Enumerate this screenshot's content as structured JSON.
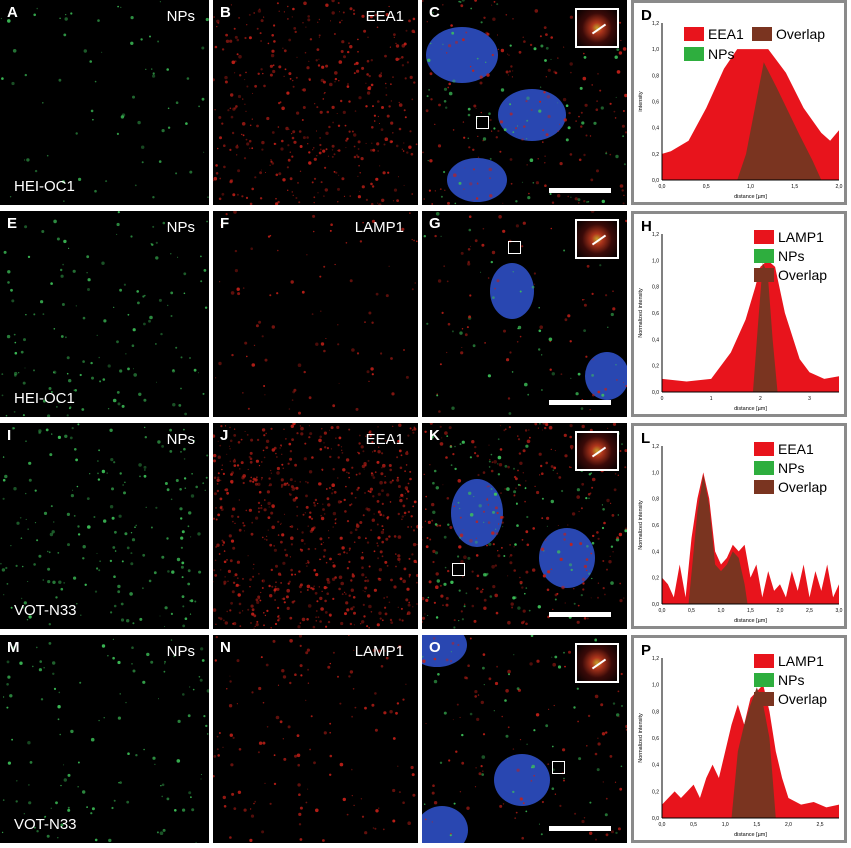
{
  "rows": [
    {
      "cell_line": "HEI-OC1",
      "panels": [
        {
          "letter": "A",
          "label": "NPs"
        },
        {
          "letter": "B",
          "label": "EEA1"
        },
        {
          "letter": "C",
          "label": ""
        }
      ],
      "plot": {
        "letter": "D",
        "ylabel": "intensity",
        "xlabel": "distance [µm]",
        "legend": [
          "EEA1",
          "Overlap",
          "NPs"
        ],
        "yticks": [
          "0,0",
          "0,2",
          "0,4",
          "0,6",
          "0,8",
          "1,0",
          "1,2"
        ],
        "xticks": [
          "0,0",
          "0,5",
          "1,0",
          "1,5",
          "2,0"
        ]
      }
    },
    {
      "cell_line": "HEI-OC1",
      "panels": [
        {
          "letter": "E",
          "label": "NPs"
        },
        {
          "letter": "F",
          "label": "LAMP1"
        },
        {
          "letter": "G",
          "label": ""
        }
      ],
      "plot": {
        "letter": "H",
        "ylabel": "Normalized intensity",
        "xlabel": "distance [µm]",
        "legend": [
          "LAMP1",
          "NPs",
          "Overlap"
        ],
        "yticks": [
          "0,0",
          "0,2",
          "0,4",
          "0,6",
          "0,8",
          "1,0",
          "1,2"
        ],
        "xticks": [
          "0",
          "1",
          "2",
          "3"
        ]
      }
    },
    {
      "cell_line": "VOT-N33",
      "panels": [
        {
          "letter": "I",
          "label": "NPs"
        },
        {
          "letter": "J",
          "label": "EEA1"
        },
        {
          "letter": "K",
          "label": ""
        }
      ],
      "plot": {
        "letter": "L",
        "ylabel": "Normalized intensity",
        "xlabel": "distance [µm]",
        "legend": [
          "EEA1",
          "NPs",
          "Overlap"
        ],
        "yticks": [
          "0,0",
          "0,2",
          "0,4",
          "0,6",
          "0,8",
          "1,0",
          "1,2"
        ],
        "xticks": [
          "0,0",
          "0,5",
          "1,0",
          "1,5",
          "2,0",
          "2,5",
          "3,0"
        ]
      }
    },
    {
      "cell_line": "VOT-N33",
      "panels": [
        {
          "letter": "M",
          "label": "NPs"
        },
        {
          "letter": "N",
          "label": "LAMP1"
        },
        {
          "letter": "O",
          "label": ""
        }
      ],
      "plot": {
        "letter": "P",
        "ylabel": "Normalized intensity",
        "xlabel": "distance [µm]",
        "legend": [
          "LAMP1",
          "NPs",
          "Overlap"
        ],
        "yticks": [
          "0,0",
          "0,2",
          "0,4",
          "0,6",
          "0,8",
          "1,0",
          "1,2"
        ],
        "xticks": [
          "0,0",
          "0,5",
          "1,0",
          "1,5",
          "2,0",
          "2,5"
        ]
      }
    }
  ],
  "colors": {
    "red": "#e8141c",
    "green": "#2eae3e",
    "overlap": "#7a3420",
    "nucleus": "#2d4fc4"
  }
}
